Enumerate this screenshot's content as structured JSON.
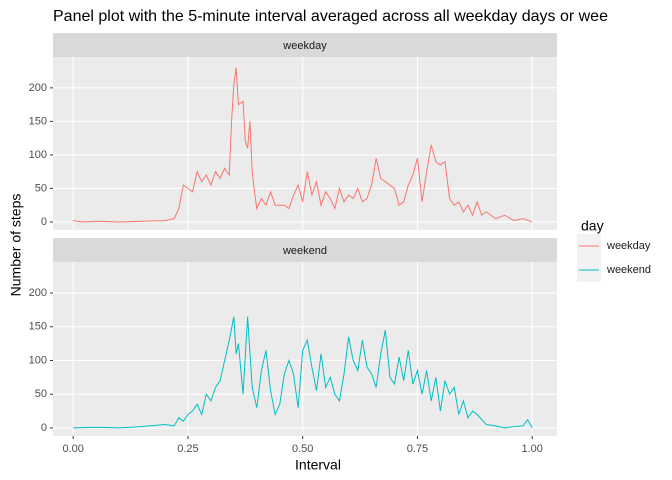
{
  "chart_data": {
    "type": "line",
    "title": "Panel plot with the 5-minute interval averaged across all weekday days or wee",
    "x_label": "Interval",
    "y_label": "Number of steps",
    "legend_title": "day",
    "xlim": [
      -0.044,
      1.054
    ],
    "xticks": [
      {
        "value": 0,
        "label": "0.00"
      },
      {
        "value": 0.25,
        "label": "0.25"
      },
      {
        "value": 0.5,
        "label": "0.50"
      },
      {
        "value": 0.75,
        "label": "0.75"
      },
      {
        "value": 1,
        "label": "1.00"
      }
    ],
    "ylim": [
      -12,
      246
    ],
    "yticks": [
      0,
      50,
      100,
      150,
      200
    ],
    "grid": true,
    "panels": [
      {
        "label": "weekday",
        "series": [
          {
            "name": "weekday",
            "color": "#f8766d",
            "x": [
              0,
              0.02,
              0.05,
              0.1,
              0.15,
              0.2,
              0.22,
              0.23,
              0.24,
              0.26,
              0.27,
              0.28,
              0.29,
              0.3,
              0.31,
              0.32,
              0.33,
              0.34,
              0.345,
              0.35,
              0.355,
              0.36,
              0.37,
              0.375,
              0.38,
              0.385,
              0.39,
              0.395,
              0.4,
              0.41,
              0.42,
              0.43,
              0.44,
              0.46,
              0.47,
              0.48,
              0.49,
              0.5,
              0.51,
              0.52,
              0.53,
              0.54,
              0.55,
              0.56,
              0.57,
              0.58,
              0.59,
              0.6,
              0.61,
              0.62,
              0.63,
              0.64,
              0.65,
              0.66,
              0.67,
              0.68,
              0.69,
              0.7,
              0.71,
              0.72,
              0.73,
              0.74,
              0.75,
              0.76,
              0.77,
              0.78,
              0.79,
              0.8,
              0.81,
              0.82,
              0.83,
              0.84,
              0.85,
              0.86,
              0.87,
              0.88,
              0.89,
              0.9,
              0.92,
              0.94,
              0.96,
              0.98,
              1
            ],
            "values": [
              2,
              0,
              1,
              0,
              1,
              2,
              5,
              20,
              55,
              45,
              75,
              60,
              70,
              55,
              75,
              65,
              80,
              70,
              150,
              205,
              230,
              175,
              180,
              120,
              110,
              150,
              75,
              45,
              20,
              35,
              25,
              45,
              25,
              25,
              20,
              40,
              55,
              30,
              75,
              40,
              60,
              25,
              45,
              35,
              20,
              50,
              30,
              40,
              35,
              50,
              30,
              35,
              55,
              95,
              65,
              60,
              55,
              50,
              25,
              30,
              55,
              70,
              95,
              30,
              75,
              115,
              90,
              85,
              90,
              35,
              25,
              30,
              15,
              25,
              10,
              30,
              10,
              15,
              5,
              10,
              2,
              5,
              0
            ]
          }
        ]
      },
      {
        "label": "weekend",
        "series": [
          {
            "name": "weekend",
            "color": "#00bfc4",
            "x": [
              0,
              0.05,
              0.1,
              0.15,
              0.2,
              0.22,
              0.23,
              0.24,
              0.25,
              0.26,
              0.27,
              0.28,
              0.29,
              0.3,
              0.31,
              0.32,
              0.33,
              0.34,
              0.35,
              0.355,
              0.36,
              0.37,
              0.38,
              0.39,
              0.4,
              0.41,
              0.42,
              0.43,
              0.44,
              0.45,
              0.46,
              0.47,
              0.48,
              0.49,
              0.5,
              0.51,
              0.52,
              0.53,
              0.54,
              0.55,
              0.56,
              0.57,
              0.58,
              0.59,
              0.6,
              0.61,
              0.62,
              0.63,
              0.64,
              0.65,
              0.66,
              0.67,
              0.68,
              0.69,
              0.7,
              0.71,
              0.72,
              0.73,
              0.74,
              0.75,
              0.76,
              0.77,
              0.78,
              0.79,
              0.8,
              0.81,
              0.82,
              0.83,
              0.84,
              0.85,
              0.86,
              0.87,
              0.88,
              0.9,
              0.92,
              0.94,
              0.96,
              0.98,
              0.99,
              1
            ],
            "values": [
              0,
              1,
              0,
              2,
              5,
              3,
              15,
              10,
              20,
              25,
              35,
              20,
              50,
              40,
              60,
              70,
              100,
              130,
              165,
              110,
              125,
              50,
              165,
              60,
              30,
              85,
              115,
              55,
              20,
              35,
              80,
              100,
              80,
              30,
              115,
              130,
              90,
              55,
              110,
              60,
              75,
              50,
              40,
              80,
              135,
              100,
              85,
              130,
              90,
              80,
              60,
              110,
              145,
              75,
              65,
              105,
              70,
              115,
              65,
              85,
              50,
              85,
              40,
              75,
              25,
              70,
              50,
              60,
              20,
              40,
              15,
              25,
              20,
              5,
              3,
              0,
              2,
              3,
              12,
              0
            ]
          }
        ]
      }
    ]
  }
}
